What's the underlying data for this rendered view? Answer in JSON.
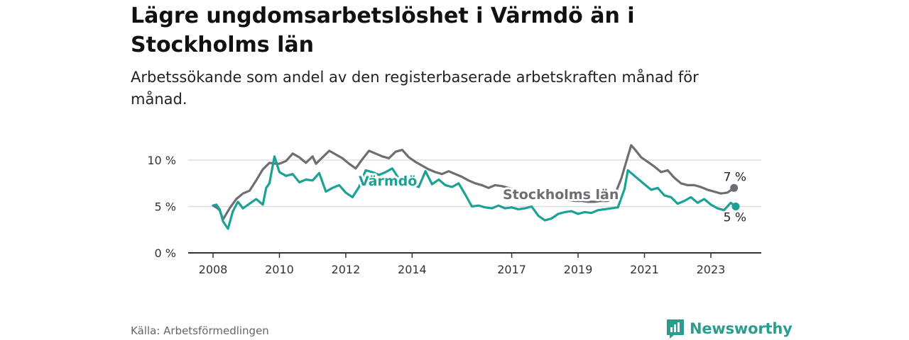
{
  "title": "Lägre ungdomsarbetslöshet i Värmdö än i Stockholms län",
  "subtitle": "Arbetssökande som andel av den registerbaserade arbetskraften månad för månad.",
  "source": "Källa: Arbetsförmedlingen",
  "brand": "Newsworthy",
  "colors": {
    "stockholm": "#6e6d73",
    "varmdo": "#1aa394",
    "grid": "#dddddd",
    "axis": "#333333"
  },
  "chart_data": {
    "type": "line",
    "title": "Lägre ungdomsarbetslöshet i Värmdö än i Stockholms län",
    "xlabel": "",
    "ylabel": "",
    "xlim": [
      2008,
      2024.2
    ],
    "ylim": [
      0,
      10
    ],
    "grid": true,
    "x_ticks": [
      2008,
      2010,
      2012,
      2014,
      2017,
      2019,
      2021,
      2023
    ],
    "x_tick_labels": [
      "2008",
      "2010",
      "2012",
      "2014",
      "2017",
      "2019",
      "2021",
      "2023"
    ],
    "y_ticks": [
      0,
      5,
      10
    ],
    "y_tick_labels": [
      "0 %",
      "5 %",
      "10 %"
    ],
    "series": [
      {
        "name": "Stockholms län",
        "color": "#6e6d73",
        "end_label": "7 %",
        "x": [
          2008.0,
          2008.1,
          2008.2,
          2008.3,
          2008.5,
          2008.7,
          2008.9,
          2009.1,
          2009.3,
          2009.5,
          2009.7,
          2009.9,
          2010.0,
          2010.2,
          2010.4,
          2010.6,
          2010.8,
          2011.0,
          2011.1,
          2011.3,
          2011.5,
          2011.7,
          2011.9,
          2012.1,
          2012.3,
          2012.5,
          2012.7,
          2012.9,
          2013.1,
          2013.3,
          2013.5,
          2013.7,
          2013.9,
          2014.1,
          2014.3,
          2014.5,
          2014.7,
          2014.9,
          2015.1,
          2015.3,
          2015.5,
          2015.7,
          2015.9,
          2016.1,
          2016.3,
          2016.5,
          2016.7,
          2016.9,
          2017.1,
          2017.3,
          2017.5,
          2017.7,
          2017.9,
          2018.1,
          2018.3,
          2018.5,
          2018.7,
          2018.9,
          2019.1,
          2019.3,
          2019.5,
          2019.7,
          2019.9,
          2020.1,
          2020.3,
          2020.5,
          2020.6,
          2020.7,
          2020.9,
          2021.1,
          2021.3,
          2021.5,
          2021.7,
          2021.9,
          2022.1,
          2022.3,
          2022.5,
          2022.7,
          2022.9,
          2023.1,
          2023.3,
          2023.5,
          2023.7
        ],
        "y": [
          5.1,
          4.9,
          4.6,
          3.6,
          4.8,
          5.8,
          6.4,
          6.7,
          7.8,
          9.0,
          9.7,
          9.6,
          9.6,
          9.9,
          10.7,
          10.3,
          9.7,
          10.4,
          9.6,
          10.3,
          11.0,
          10.6,
          10.2,
          9.6,
          9.1,
          10.1,
          11.0,
          10.7,
          10.4,
          10.2,
          10.9,
          11.1,
          10.3,
          9.8,
          9.4,
          9.0,
          8.7,
          8.5,
          8.8,
          8.5,
          8.2,
          7.8,
          7.5,
          7.3,
          7.0,
          7.3,
          7.2,
          7.0,
          6.8,
          6.5,
          6.3,
          6.2,
          6.0,
          5.8,
          5.9,
          5.8,
          5.7,
          5.6,
          5.6,
          5.5,
          5.5,
          5.6,
          5.6,
          6.2,
          8.0,
          10.4,
          11.6,
          11.2,
          10.3,
          9.8,
          9.3,
          8.7,
          8.9,
          8.1,
          7.5,
          7.3,
          7.3,
          7.1,
          6.8,
          6.6,
          6.4,
          6.5,
          7.0
        ]
      },
      {
        "name": "Värmdö",
        "color": "#1aa394",
        "end_label": "5 %",
        "x": [
          2008.0,
          2008.1,
          2008.2,
          2008.3,
          2008.45,
          2008.6,
          2008.75,
          2008.9,
          2009.1,
          2009.3,
          2009.5,
          2009.6,
          2009.7,
          2009.85,
          2010.0,
          2010.2,
          2010.4,
          2010.6,
          2010.8,
          2011.0,
          2011.2,
          2011.4,
          2011.6,
          2011.8,
          2012.0,
          2012.2,
          2012.4,
          2012.6,
          2012.8,
          2013.0,
          2013.2,
          2013.4,
          2013.6,
          2013.8,
          2014.0,
          2014.2,
          2014.4,
          2014.6,
          2014.8,
          2015.0,
          2015.2,
          2015.4,
          2015.6,
          2015.8,
          2016.0,
          2016.2,
          2016.4,
          2016.6,
          2016.8,
          2017.0,
          2017.2,
          2017.4,
          2017.6,
          2017.8,
          2018.0,
          2018.2,
          2018.4,
          2018.6,
          2018.8,
          2019.0,
          2019.2,
          2019.4,
          2019.6,
          2019.8,
          2020.0,
          2020.2,
          2020.4,
          2020.5,
          2020.6,
          2020.8,
          2021.0,
          2021.2,
          2021.4,
          2021.6,
          2021.8,
          2022.0,
          2022.2,
          2022.4,
          2022.6,
          2022.8,
          2023.0,
          2023.2,
          2023.4,
          2023.6,
          2023.75
        ],
        "y": [
          5.1,
          5.2,
          4.7,
          3.4,
          2.6,
          4.5,
          5.5,
          4.8,
          5.3,
          5.8,
          5.2,
          7.0,
          7.5,
          10.4,
          8.7,
          8.3,
          8.5,
          7.6,
          7.9,
          7.8,
          8.6,
          6.6,
          7.0,
          7.3,
          6.5,
          6.0,
          7.1,
          8.9,
          8.7,
          8.4,
          8.7,
          9.1,
          8.0,
          7.6,
          7.4,
          7.1,
          8.8,
          7.4,
          7.9,
          7.3,
          7.1,
          7.5,
          6.3,
          5.0,
          5.1,
          4.9,
          4.8,
          5.1,
          4.8,
          4.9,
          4.7,
          4.8,
          5.0,
          4.0,
          3.5,
          3.7,
          4.2,
          4.4,
          4.5,
          4.2,
          4.4,
          4.3,
          4.6,
          4.7,
          4.8,
          4.9,
          6.9,
          8.9,
          8.6,
          8.0,
          7.4,
          6.8,
          7.0,
          6.2,
          6.0,
          5.3,
          5.6,
          6.0,
          5.4,
          5.8,
          5.2,
          4.8,
          4.6,
          5.4,
          5.0
        ]
      }
    ]
  }
}
